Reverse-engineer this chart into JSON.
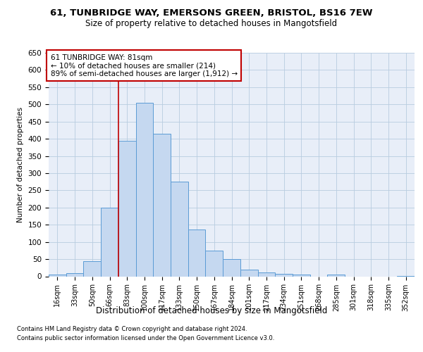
{
  "title_line1": "61, TUNBRIDGE WAY, EMERSONS GREEN, BRISTOL, BS16 7EW",
  "title_line2": "Size of property relative to detached houses in Mangotsfield",
  "xlabel": "Distribution of detached houses by size in Mangotsfield",
  "ylabel": "Number of detached properties",
  "categories": [
    "16sqm",
    "33sqm",
    "50sqm",
    "66sqm",
    "83sqm",
    "100sqm",
    "117sqm",
    "133sqm",
    "150sqm",
    "167sqm",
    "184sqm",
    "201sqm",
    "217sqm",
    "234sqm",
    "251sqm",
    "268sqm",
    "285sqm",
    "301sqm",
    "318sqm",
    "335sqm",
    "352sqm"
  ],
  "values": [
    5,
    10,
    44,
    200,
    395,
    505,
    415,
    275,
    137,
    74,
    51,
    20,
    11,
    8,
    5,
    0,
    5,
    0,
    0,
    0,
    2
  ],
  "bar_color": "#c5d8f0",
  "bar_edge_color": "#5b9bd5",
  "vline_color": "#c00000",
  "annotation_text": "61 TUNBRIDGE WAY: 81sqm\n← 10% of detached houses are smaller (214)\n89% of semi-detached houses are larger (1,912) →",
  "annotation_box_color": "#c00000",
  "ylim": [
    0,
    650
  ],
  "yticks": [
    0,
    50,
    100,
    150,
    200,
    250,
    300,
    350,
    400,
    450,
    500,
    550,
    600,
    650
  ],
  "footer_line1": "Contains HM Land Registry data © Crown copyright and database right 2024.",
  "footer_line2": "Contains public sector information licensed under the Open Government Licence v3.0.",
  "background_color": "#e8eef8",
  "grid_color": "#b8cce0"
}
